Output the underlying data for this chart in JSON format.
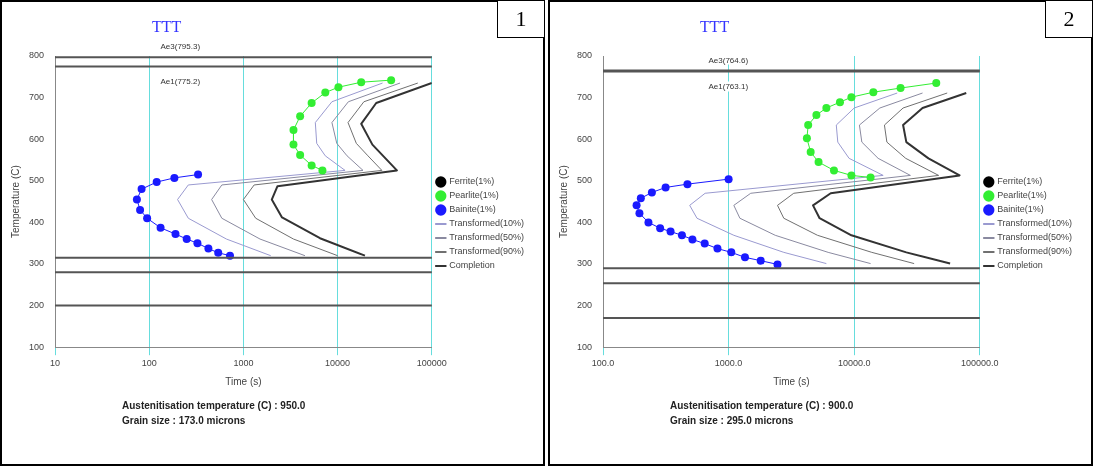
{
  "chart_data": [
    {
      "type": "line",
      "title": "TTT",
      "xlabel": "Time (s)",
      "ylabel": "Temperature (C)",
      "log": "x",
      "grid": "x",
      "legend": "right",
      "marker": "circle",
      "xlim": [
        10,
        100000
      ],
      "xticks": [
        10,
        100,
        1000,
        10000,
        100000
      ],
      "ylim": [
        100,
        800
      ],
      "yticks": [
        100,
        200,
        300,
        400,
        500,
        600,
        700,
        800
      ],
      "series": [
        {
          "name": "Ferrite(1%)",
          "color": "#000000"
        },
        {
          "name": "Pearlite(1%)",
          "color": "#33ee33",
          "x": [
            37000,
            17800,
            10200,
            7400,
            5300,
            4000,
            3400,
            3400,
            4000,
            5300,
            6900
          ],
          "values": [
            742,
            737,
            725,
            712,
            687,
            655,
            622,
            587,
            562,
            537,
            525
          ]
        },
        {
          "name": "Bainite(1%)",
          "color": "#1a1aff",
          "x": [
            330,
            185,
            120,
            83,
            74,
            80,
            95,
            132,
            190,
            250,
            325,
            425,
            540,
            720
          ],
          "values": [
            515,
            507,
            497,
            480,
            455,
            430,
            410,
            387,
            372,
            360,
            350,
            337,
            327,
            320
          ]
        },
        {
          "name": "Transformed(10%)",
          "color": "#9a9ad0",
          "marker": "none",
          "x": [
            30000,
            8700,
            5800,
            6000,
            7400,
            12000,
            260,
            200,
            260,
            660,
            1950
          ],
          "values": [
            735,
            690,
            640,
            590,
            560,
            525,
            490,
            455,
            410,
            360,
            320
          ]
        },
        {
          "name": "Transformed(50%)",
          "color": "#8a8aa0",
          "marker": "none",
          "x": [
            46000,
            13000,
            8700,
            9800,
            12600,
            18600,
            590,
            460,
            590,
            1500,
            4500
          ],
          "values": [
            735,
            690,
            640,
            590,
            560,
            525,
            490,
            455,
            410,
            360,
            320
          ]
        },
        {
          "name": "Transformed(90%)",
          "color": "#707070",
          "marker": "none",
          "x": [
            71000,
            19000,
            12900,
            15800,
            21000,
            29500,
            1300,
            1000,
            1350,
            3400,
            10000
          ],
          "values": [
            735,
            690,
            640,
            590,
            560,
            525,
            490,
            455,
            410,
            360,
            320
          ]
        },
        {
          "name": "Completion",
          "color": "#333333",
          "marker": "none",
          "x": [
            100000,
            25700,
            17800,
            23400,
            42600,
            2300,
            2000,
            2570,
            6500,
            19500
          ],
          "values": [
            735,
            687,
            637,
            587,
            525,
            487,
            455,
            412,
            362,
            320
          ]
        }
      ],
      "ref_lines": [
        {
          "axis": "y",
          "value": 797,
          "label": "Ae3(795.3)",
          "color": "#555555"
        },
        {
          "axis": "y",
          "value": 775,
          "label": "Ae1(775.2)",
          "color": "#555555"
        },
        {
          "axis": "y",
          "value": 315,
          "color": "#555555"
        },
        {
          "axis": "y",
          "value": 280,
          "color": "#555555"
        },
        {
          "axis": "y",
          "value": 200,
          "color": "#555555"
        }
      ],
      "annotations": [
        "1",
        "Austenitisation temperature (C) : 950.0",
        "Grain size : 173.0 microns"
      ]
    },
    {
      "type": "line",
      "title": "TTT",
      "xlabel": "Time (s)",
      "ylabel": "Temperature (C)",
      "log": "x",
      "grid": "x",
      "legend": "right",
      "marker": "circle",
      "xlim": [
        100,
        100000
      ],
      "xticks": [
        {
          "value": 100,
          "label": "100.0"
        },
        {
          "value": 1000,
          "label": "1000.0"
        },
        {
          "value": 10000,
          "label": "10000.0"
        },
        {
          "value": 100000,
          "label": "100000.0"
        }
      ],
      "ylim": [
        100,
        800
      ],
      "yticks": [
        100,
        200,
        300,
        400,
        500,
        600,
        700,
        800
      ],
      "series": [
        {
          "name": "Ferrite(1%)",
          "color": "#000000"
        },
        {
          "name": "Pearlite(1%)",
          "color": "#33ee33",
          "x": [
            45000,
            23400,
            14200,
            9500,
            7700,
            6000,
            5000,
            4300,
            4200,
            4500,
            5200,
            6900,
            9500,
            13500
          ],
          "values": [
            735,
            723,
            713,
            701,
            689,
            675,
            658,
            634,
            602,
            569,
            545,
            525,
            513,
            508
          ]
        },
        {
          "name": "Bainite(1%)",
          "color": "#1a1aff",
          "x": [
            1000,
            470,
            315,
            245,
            200,
            185,
            195,
            230,
            285,
            345,
            425,
            515,
            645,
            815,
            1050,
            1350,
            1800,
            2450
          ],
          "values": [
            504,
            492,
            484,
            472,
            458,
            441,
            422,
            400,
            386,
            378,
            369,
            359,
            349,
            337,
            328,
            316,
            308,
            299
          ]
        },
        {
          "name": "Transformed(10%)",
          "color": "#9a9ad0",
          "marker": "none",
          "x": [
            22000,
            10000,
            7200,
            7400,
            9100,
            17000,
            650,
            490,
            560,
            1100,
            2750,
            6000
          ],
          "values": [
            711,
            675,
            634,
            593,
            554,
            513,
            470,
            441,
            410,
            369,
            328,
            301
          ]
        },
        {
          "name": "Transformed(50%)",
          "color": "#8a8aa0",
          "marker": "none",
          "x": [
            35000,
            16000,
            11000,
            11500,
            15500,
            28000,
            1500,
            1100,
            1230,
            2350,
            6200,
            13500
          ],
          "values": [
            711,
            675,
            634,
            593,
            554,
            513,
            470,
            441,
            410,
            369,
            328,
            301
          ]
        },
        {
          "name": "Transformed(90%)",
          "color": "#707070",
          "marker": "none",
          "x": [
            55000,
            24500,
            17400,
            18200,
            25700,
            47000,
            3300,
            2450,
            2750,
            5100,
            13800,
            30000
          ],
          "values": [
            711,
            675,
            634,
            593,
            554,
            513,
            470,
            441,
            410,
            369,
            328,
            301
          ]
        },
        {
          "name": "Completion",
          "color": "#333333",
          "marker": "none",
          "x": [
            78000,
            35000,
            24500,
            26000,
            39000,
            69000,
            6500,
            4700,
            5300,
            9500,
            26000,
            58000
          ],
          "values": [
            711,
            675,
            634,
            593,
            554,
            513,
            470,
            441,
            410,
            369,
            328,
            301
          ]
        }
      ],
      "ref_lines": [
        {
          "axis": "y",
          "value": 765,
          "label": "Ae3(764.6)",
          "color": "#555555"
        },
        {
          "axis": "y",
          "value": 763,
          "label": "Ae1(763.1)",
          "color": "#555555"
        },
        {
          "axis": "y",
          "value": 290,
          "color": "#555555"
        },
        {
          "axis": "y",
          "value": 254,
          "color": "#555555"
        },
        {
          "axis": "y",
          "value": 170,
          "color": "#555555"
        }
      ],
      "annotations": [
        "2",
        "Austenitisation temperature (C) : 900.0",
        "Grain size : 295.0 microns"
      ]
    }
  ]
}
